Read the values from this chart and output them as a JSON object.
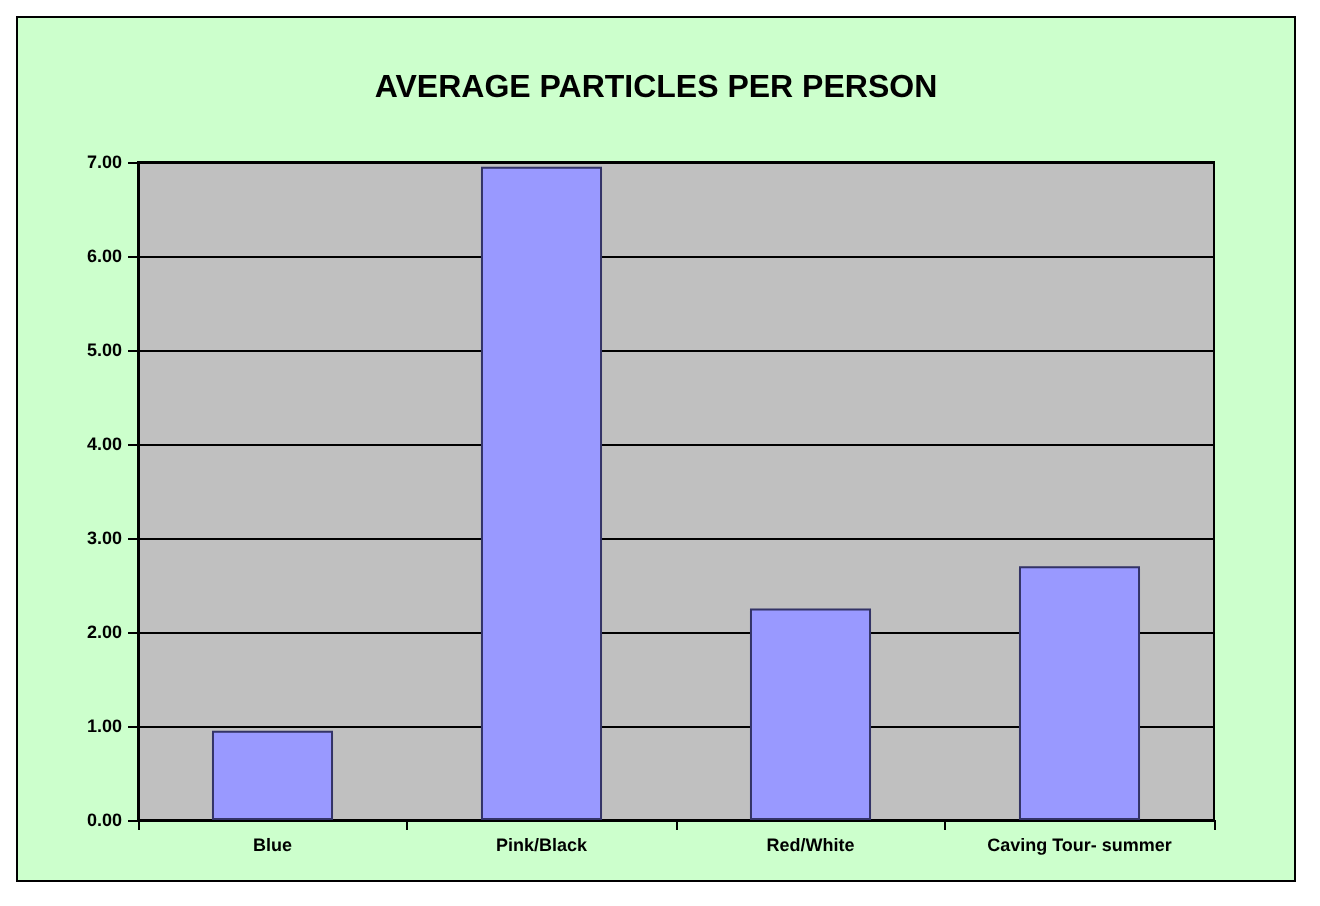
{
  "chart_data": {
    "type": "bar",
    "title": "AVERAGE PARTICLES PER PERSON",
    "categories": [
      "Blue",
      "Pink/Black",
      "Red/White",
      "Caving Tour- summer"
    ],
    "values": [
      0.95,
      6.95,
      2.25,
      2.7
    ],
    "color": "#9999ff",
    "ylim": [
      0,
      7
    ],
    "yticks": [
      {
        "value": 0,
        "label": "0.00"
      },
      {
        "value": 1,
        "label": "1.00"
      },
      {
        "value": 2,
        "label": "2.00"
      },
      {
        "value": 3,
        "label": "3.00"
      },
      {
        "value": 4,
        "label": "4.00"
      },
      {
        "value": 5,
        "label": "5.00"
      },
      {
        "value": 6,
        "label": "6.00"
      },
      {
        "value": 7,
        "label": "7.00"
      }
    ],
    "grid": "y"
  }
}
